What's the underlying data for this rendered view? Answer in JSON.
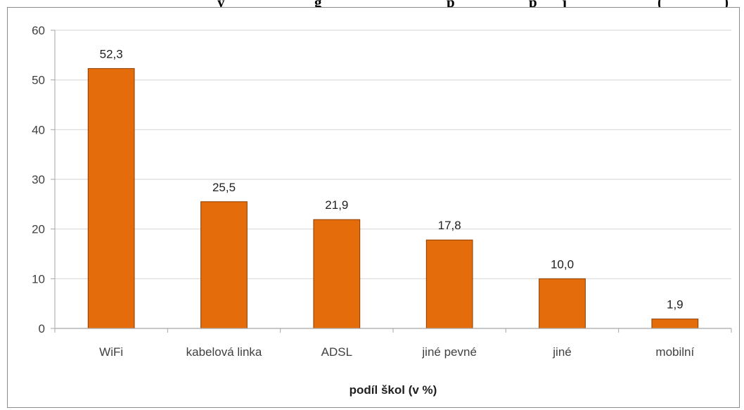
{
  "title_fragments": [
    "y",
    "g",
    "p",
    "p",
    "j",
    "(",
    ")"
  ],
  "colors": {
    "bar": "#E46C0A",
    "bar_stroke": "#8B3D00",
    "grid": "#D9D9D9",
    "axis": "#A6A6A6"
  },
  "chart_data": {
    "type": "bar",
    "categories": [
      "WiFi",
      "kabelová linka",
      "ADSL",
      "jiné pevné",
      "jiné",
      "mobilní"
    ],
    "values": [
      52.3,
      25.5,
      21.9,
      17.8,
      10.0,
      1.9
    ],
    "value_labels": [
      "52,3",
      "25,5",
      "21,9",
      "17,8",
      "10,0",
      "1,9"
    ],
    "ylim": [
      0,
      60
    ],
    "yticks": [
      0,
      10,
      20,
      30,
      40,
      50,
      60
    ],
    "xlabel": "podíl škol (v %)",
    "ylabel": "",
    "grid": true,
    "legend": "none"
  }
}
